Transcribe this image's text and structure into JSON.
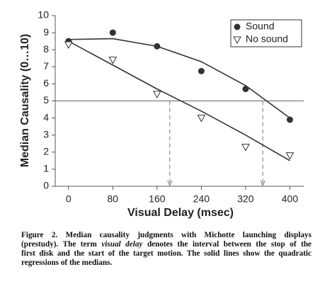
{
  "chart_data": {
    "type": "scatter",
    "xlabel": "Visual Delay (msec)",
    "ylabel": "Median Causality (0…10)",
    "x": [
      0,
      80,
      160,
      240,
      320,
      400
    ],
    "series": [
      {
        "name": "Sound",
        "color": "#333333",
        "marker": "circle",
        "values": [
          8.5,
          9.0,
          8.2,
          6.75,
          5.7,
          3.9
        ],
        "fit_values": [
          8.6,
          8.65,
          8.2,
          7.3,
          5.9,
          4.0
        ]
      },
      {
        "name": "No sound",
        "color": "#333333",
        "marker": "triangle-down",
        "values": [
          8.3,
          7.4,
          5.4,
          4.0,
          2.3,
          1.8
        ],
        "fit_values": [
          8.5,
          7.1,
          5.7,
          4.4,
          3.0,
          1.5
        ]
      }
    ],
    "reference_y": 5,
    "crossings_x": [
      183,
      351
    ],
    "xlim": [
      -24,
      425
    ],
    "ylim": [
      0,
      10
    ],
    "xticks": [
      0,
      80,
      160,
      240,
      320,
      400
    ],
    "yticks": [
      0,
      1,
      2,
      3,
      4,
      5,
      6,
      7,
      8,
      9,
      10
    ],
    "legend": "upper right"
  },
  "caption": {
    "line1": "Figure 2. Median causality judgments with Michotte launching displays",
    "line2_start": "(prestudy). The term",
    "line2_italic": "visual delay",
    "line2_end": "denotes the interval between the stop of the",
    "line3": "first disk and the start of the target motion. The solid lines show the quadratic",
    "line4": "regressions of the medians."
  }
}
